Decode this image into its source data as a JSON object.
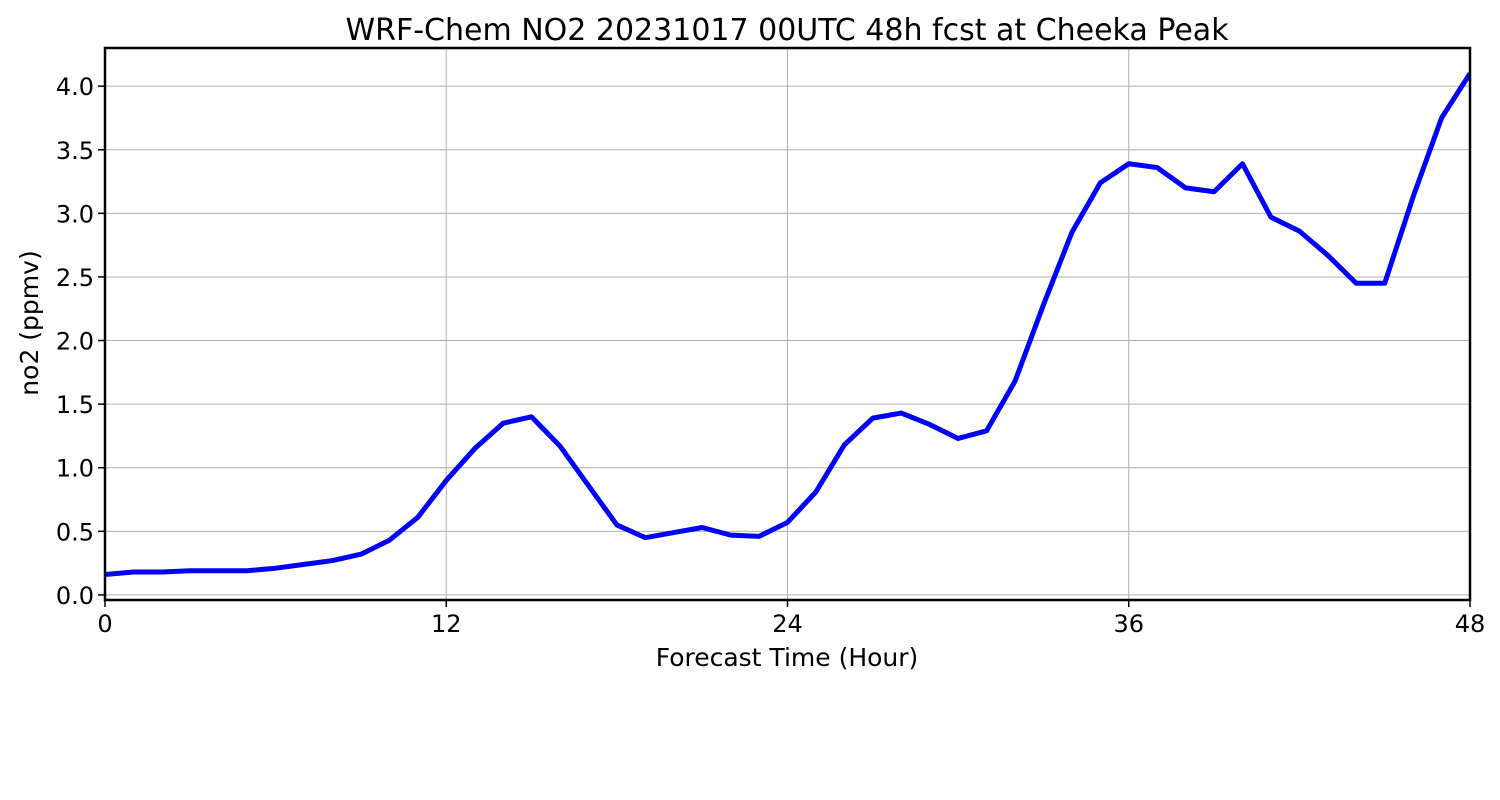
{
  "chart_data": {
    "type": "line",
    "title": "WRF-Chem NO2  20231017 00UTC 48h fcst at Cheeka Peak",
    "xlabel": "Forecast Time (Hour)",
    "ylabel": "no2  (ppmv)",
    "xlim": [
      0,
      48
    ],
    "ylim": [
      -0.04,
      4.3
    ],
    "x_ticks": [
      0,
      12,
      24,
      36,
      48
    ],
    "x_tick_labels": [
      "0",
      "12",
      "24",
      "36",
      "48"
    ],
    "y_ticks": [
      0.0,
      0.5,
      1.0,
      1.5,
      2.0,
      2.5,
      3.0,
      3.5,
      4.0
    ],
    "y_tick_labels": [
      "0.0",
      "0.5",
      "1.0",
      "1.5",
      "2.0",
      "2.5",
      "3.0",
      "3.5",
      "4.0"
    ],
    "grid": true,
    "series": [
      {
        "color": "#0000ff",
        "x": [
          0,
          1,
          2,
          3,
          4,
          5,
          6,
          7,
          8,
          9,
          10,
          11,
          12,
          13,
          14,
          15,
          16,
          17,
          18,
          19,
          20,
          21,
          22,
          23,
          24,
          25,
          26,
          27,
          28,
          29,
          30,
          31,
          32,
          33,
          34,
          35,
          36,
          37,
          38,
          39,
          40,
          41,
          42,
          43,
          44,
          45,
          46,
          47,
          48
        ],
        "values": [
          0.16,
          0.18,
          0.18,
          0.19,
          0.19,
          0.19,
          0.21,
          0.24,
          0.27,
          0.32,
          0.43,
          0.61,
          0.9,
          1.15,
          1.35,
          1.4,
          1.17,
          0.86,
          0.55,
          0.45,
          0.49,
          0.53,
          0.47,
          0.46,
          0.57,
          0.81,
          1.18,
          1.39,
          1.43,
          1.34,
          1.23,
          1.29,
          1.68,
          2.28,
          2.85,
          3.24,
          3.39,
          3.36,
          3.2,
          3.17,
          3.39,
          2.97,
          2.86,
          2.67,
          2.45,
          2.45,
          3.13,
          3.75,
          4.1
        ]
      }
    ]
  }
}
